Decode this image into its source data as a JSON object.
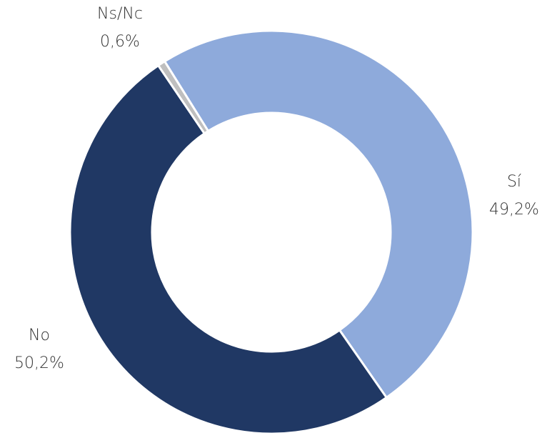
{
  "chart_data": {
    "type": "pie",
    "donut": true,
    "categories": [
      "Sí",
      "No",
      "Ns/Nc"
    ],
    "values": [
      49.2,
      50.2,
      0.6
    ],
    "value_labels": [
      "49,2%",
      "50,2%",
      "0,6%"
    ],
    "colors": [
      "#8eaadb",
      "#203864",
      "#bfbfbf"
    ]
  }
}
